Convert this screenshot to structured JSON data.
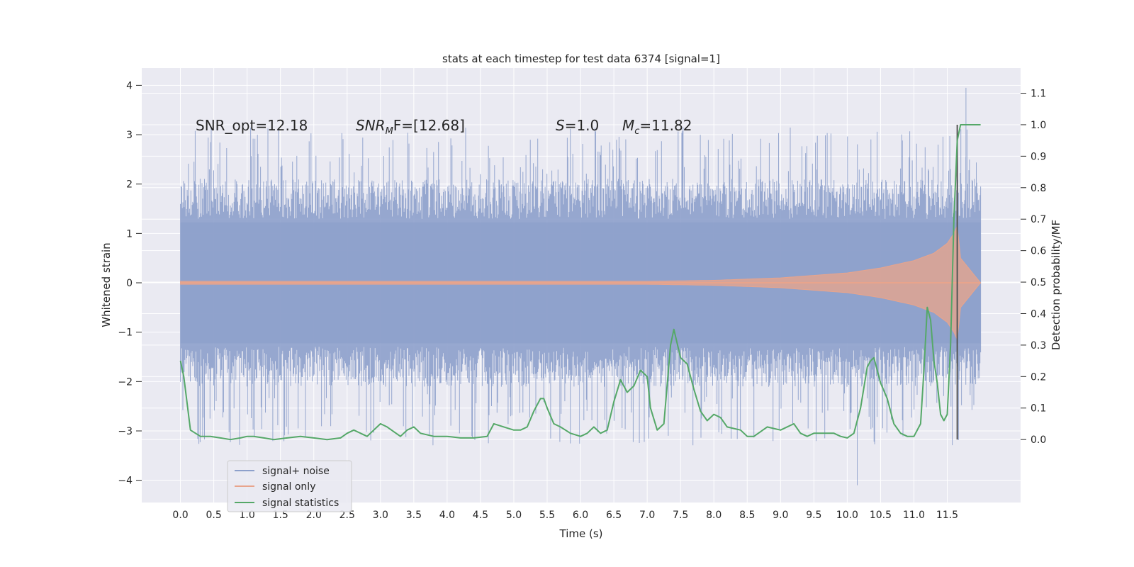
{
  "chart_data": {
    "type": "line",
    "title": "stats at each timestep for test data 6374 [signal=1]",
    "xlabel": "Time (s)",
    "ylabel": "Whitened strain",
    "ylabel_right": "Detection probability/MF",
    "xlim": [
      -0.58,
      12.6
    ],
    "ylim": [
      -4.45,
      4.35
    ],
    "ylim_right": [
      -0.2,
      1.18
    ],
    "x_ticks": [
      0.0,
      0.5,
      1.0,
      1.5,
      2.0,
      2.5,
      3.0,
      3.5,
      4.0,
      4.5,
      5.0,
      5.5,
      6.0,
      6.5,
      7.0,
      7.5,
      8.0,
      8.5,
      9.0,
      9.5,
      10.0,
      10.5,
      11.0,
      11.5
    ],
    "x_tick_labels": [
      "0.0",
      "0.5",
      "1.0",
      "1.5",
      "2.0",
      "2.5",
      "3.0",
      "3.5",
      "4.0",
      "4.5",
      "5.0",
      "5.5",
      "6.0",
      "6.5",
      "7.0",
      "7.5",
      "8.0",
      "8.5",
      "9.0",
      "9.5",
      "10.0",
      "10.5",
      "11.0",
      "11.5"
    ],
    "y_ticks": [
      4,
      3,
      2,
      1,
      0,
      -1,
      -2,
      -3,
      -4
    ],
    "y_tick_labels": [
      "4",
      "3",
      "2",
      "1",
      "0",
      "−1",
      "−2",
      "−3",
      "−4"
    ],
    "y_right_ticks": [
      1.1,
      1.0,
      0.9,
      0.8,
      0.7,
      0.6,
      0.5,
      0.4,
      0.3,
      0.2,
      0.1,
      0.0
    ],
    "y_right_tick_labels": [
      "1.1",
      "1.0",
      "0.9",
      "0.8",
      "0.7",
      "0.6",
      "0.5",
      "0.4",
      "0.3",
      "0.2",
      "0.1",
      "0.0"
    ],
    "grid": true,
    "legend_position": "lower-left",
    "annotations": {
      "snr_opt": "SNR_opt=12.18",
      "snr_mf_label": "SNR",
      "snr_mf_sub": "M",
      "snr_mf_value": "F=[12.68]",
      "s_label": "S",
      "s_value": "=1.0",
      "mc_label": "M",
      "mc_sub": "c",
      "mc_value": "=11.82"
    },
    "series": [
      {
        "name": "signal+ noise",
        "color": "#8da0cb",
        "kind": "noise",
        "x_range": [
          0.0,
          12.0
        ],
        "bulk_amplitude": 1.8,
        "peak_range": [
          -4.1,
          3.95
        ]
      },
      {
        "name": "signal only",
        "color": "#e8a48c",
        "kind": "chirp",
        "x_range": [
          0.0,
          12.0
        ],
        "envelope_x": [
          0.0,
          7.0,
          8.0,
          9.0,
          10.0,
          10.5,
          11.0,
          11.3,
          11.5,
          11.6,
          11.65,
          11.7,
          12.0
        ],
        "envelope_y": [
          0.03,
          0.03,
          0.05,
          0.1,
          0.2,
          0.3,
          0.45,
          0.6,
          0.8,
          1.0,
          1.15,
          0.5,
          0.0
        ]
      },
      {
        "name": "signal statistics",
        "color": "#55a868",
        "kind": "line",
        "x": [
          0.0,
          0.05,
          0.15,
          0.3,
          0.45,
          0.6,
          0.75,
          0.9,
          1.0,
          1.1,
          1.25,
          1.4,
          1.6,
          1.8,
          2.0,
          2.2,
          2.4,
          2.5,
          2.6,
          2.8,
          3.0,
          3.1,
          3.3,
          3.4,
          3.5,
          3.6,
          3.8,
          4.0,
          4.2,
          4.4,
          4.6,
          4.7,
          4.85,
          5.0,
          5.1,
          5.2,
          5.3,
          5.4,
          5.45,
          5.5,
          5.6,
          5.7,
          5.85,
          6.0,
          6.1,
          6.2,
          6.3,
          6.4,
          6.5,
          6.6,
          6.7,
          6.8,
          6.9,
          7.0,
          7.05,
          7.15,
          7.25,
          7.35,
          7.4,
          7.5,
          7.6,
          7.7,
          7.8,
          7.9,
          8.0,
          8.1,
          8.2,
          8.4,
          8.5,
          8.6,
          8.8,
          9.0,
          9.2,
          9.3,
          9.4,
          9.5,
          9.6,
          9.8,
          9.9,
          10.0,
          10.1,
          10.2,
          10.3,
          10.35,
          10.4,
          10.45,
          10.5,
          10.6,
          10.7,
          10.8,
          10.9,
          11.0,
          11.1,
          11.15,
          11.2,
          11.25,
          11.3,
          11.35,
          11.4,
          11.45,
          11.5,
          11.55,
          11.6,
          11.65,
          11.7,
          11.75,
          11.8,
          11.9,
          12.0
        ],
        "y": [
          0.25,
          0.2,
          0.03,
          0.01,
          0.01,
          0.005,
          0.0,
          0.005,
          0.01,
          0.01,
          0.005,
          0.0,
          0.005,
          0.01,
          0.005,
          0.0,
          0.005,
          0.02,
          0.03,
          0.01,
          0.05,
          0.04,
          0.01,
          0.03,
          0.04,
          0.02,
          0.01,
          0.01,
          0.005,
          0.005,
          0.01,
          0.05,
          0.04,
          0.03,
          0.03,
          0.04,
          0.09,
          0.13,
          0.13,
          0.1,
          0.05,
          0.04,
          0.02,
          0.01,
          0.02,
          0.04,
          0.02,
          0.03,
          0.12,
          0.19,
          0.15,
          0.17,
          0.22,
          0.2,
          0.1,
          0.03,
          0.05,
          0.3,
          0.35,
          0.26,
          0.24,
          0.16,
          0.09,
          0.06,
          0.08,
          0.07,
          0.04,
          0.03,
          0.01,
          0.01,
          0.04,
          0.03,
          0.05,
          0.02,
          0.01,
          0.02,
          0.02,
          0.02,
          0.01,
          0.005,
          0.02,
          0.1,
          0.23,
          0.25,
          0.26,
          0.22,
          0.18,
          0.13,
          0.05,
          0.02,
          0.01,
          0.01,
          0.05,
          0.22,
          0.42,
          0.38,
          0.25,
          0.18,
          0.08,
          0.06,
          0.08,
          0.3,
          0.7,
          0.95,
          1.0,
          1.0,
          1.0,
          1.0,
          1.0
        ],
        "vline_x": 11.65
      }
    ]
  }
}
